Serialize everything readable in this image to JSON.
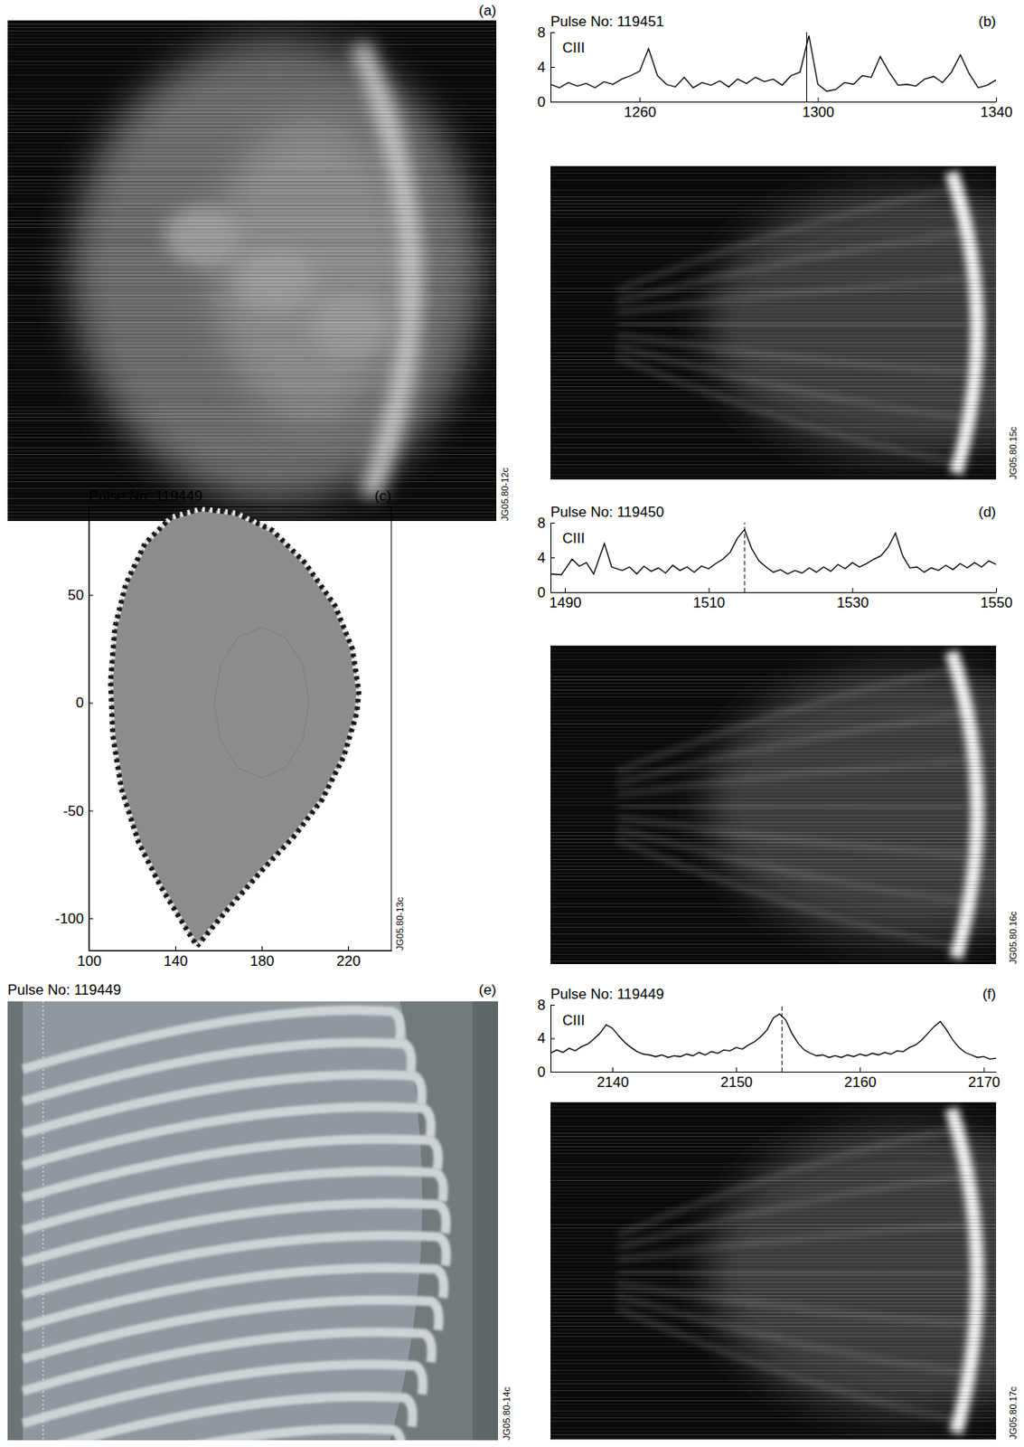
{
  "chart_data": [
    {
      "type": "line",
      "label": "(b)",
      "title": "Pulse No: 119451",
      "code": "JG05.80.15c",
      "annotations": [
        "CIII"
      ],
      "xlim": [
        1240,
        1340
      ],
      "xticks": [
        1260,
        1300,
        1340
      ],
      "ylim": [
        0,
        8
      ],
      "yticks": [
        0,
        4,
        8
      ],
      "vlines": [
        {
          "x": 1297.5,
          "line_style": "solid"
        }
      ],
      "series": [
        {
          "color": "#000000",
          "x": [
            1240,
            1242,
            1244,
            1246,
            1248,
            1250,
            1252,
            1254,
            1256,
            1258,
            1260,
            1262,
            1264,
            1266,
            1268,
            1270,
            1272,
            1274,
            1276,
            1278,
            1280,
            1282,
            1284,
            1286,
            1288,
            1290,
            1292,
            1294,
            1296,
            1298,
            1300,
            1302,
            1304,
            1306,
            1308,
            1310,
            1312,
            1314,
            1316,
            1318,
            1320,
            1322,
            1324,
            1326,
            1328,
            1330,
            1332,
            1334,
            1336,
            1338,
            1340
          ],
          "values": [
            2.0,
            1.6,
            2.2,
            1.8,
            2.1,
            1.6,
            2.3,
            2.0,
            2.6,
            3.0,
            3.5,
            6.1,
            3.0,
            2.0,
            1.7,
            2.8,
            1.6,
            2.2,
            1.9,
            2.4,
            1.7,
            2.6,
            2.1,
            2.8,
            2.3,
            2.6,
            1.9,
            3.0,
            3.4,
            7.6,
            2.0,
            1.2,
            1.4,
            2.2,
            2.0,
            3.0,
            2.8,
            5.2,
            3.4,
            1.9,
            2.0,
            1.8,
            2.6,
            2.9,
            2.2,
            3.4,
            5.4,
            3.2,
            1.6,
            1.9,
            2.5
          ]
        }
      ]
    },
    {
      "type": "line",
      "label": "(c)",
      "title": "Pulse No: 119449",
      "code": "JG05.80-13c",
      "xlim": [
        100,
        240
      ],
      "xticks": [
        100,
        140,
        180,
        220
      ],
      "ylim": [
        -115,
        91
      ],
      "yticks": [
        50,
        0,
        -50,
        -100
      ],
      "series": [
        {
          "color": "#8c8c8c",
          "x": [
            150,
            165,
            180,
            195,
            208,
            218,
            224,
            225,
            222,
            214,
            200,
            185,
            168,
            152,
            138,
            126,
            117,
            112,
            110,
            111,
            115,
            123,
            133,
            142,
            150
          ],
          "values": [
            -113,
            -95,
            -78,
            -62,
            -45,
            -25,
            -5,
            5,
            25,
            45,
            65,
            80,
            88,
            90,
            86,
            74,
            55,
            35,
            10,
            -15,
            -40,
            -65,
            -85,
            -100,
            -113
          ]
        },
        {
          "color": "#777777",
          "x": [
            202,
            199,
            191,
            180,
            169,
            161,
            158,
            161,
            169,
            180,
            191,
            199,
            202
          ],
          "values": [
            0,
            17.5,
            30.3,
            35,
            30.3,
            17.5,
            0,
            -17.5,
            -30.3,
            -35,
            -30.3,
            -17.5,
            0
          ]
        }
      ]
    },
    {
      "type": "line",
      "label": "(d)",
      "title": "Pulse No: 119450",
      "code": "JG05.80.16c",
      "annotations": [
        "CIII"
      ],
      "xlim": [
        1488,
        1550
      ],
      "xticks": [
        1490,
        1510,
        1530,
        1550
      ],
      "ylim": [
        0,
        8
      ],
      "yticks": [
        0,
        4,
        8
      ],
      "vlines": [
        {
          "x": 1515,
          "line_style": "dashed"
        }
      ],
      "series": [
        {
          "color": "#000000",
          "x": [
            1488,
            1489.5,
            1491,
            1492,
            1493,
            1494,
            1495.5,
            1496.5,
            1498,
            1499,
            1500,
            1501,
            1502,
            1503,
            1504,
            1505,
            1506,
            1507,
            1508,
            1509,
            1510,
            1511,
            1512,
            1513,
            1514,
            1515,
            1516,
            1517,
            1518,
            1519,
            1520,
            1521,
            1522,
            1523,
            1524,
            1525,
            1526,
            1527,
            1528,
            1529,
            1530,
            1531,
            1532,
            1533,
            1534,
            1535,
            1536,
            1537,
            1538,
            1539,
            1540,
            1541,
            1542,
            1543,
            1544,
            1545,
            1546,
            1547,
            1548,
            1549,
            1550
          ],
          "values": [
            2.1,
            2.0,
            3.8,
            3.0,
            3.4,
            2.1,
            5.6,
            2.9,
            2.5,
            2.9,
            2.1,
            3.0,
            2.4,
            2.8,
            2.2,
            3.1,
            2.5,
            2.9,
            2.3,
            3.0,
            2.7,
            3.3,
            3.8,
            4.6,
            6.2,
            7.2,
            5.0,
            3.6,
            2.9,
            2.3,
            2.6,
            2.1,
            2.5,
            2.2,
            2.8,
            2.3,
            2.9,
            2.4,
            3.2,
            2.7,
            3.4,
            2.9,
            3.3,
            3.8,
            4.2,
            5.2,
            6.8,
            4.2,
            2.8,
            2.9,
            2.3,
            2.8,
            2.5,
            3.1,
            2.6,
            3.3,
            2.8,
            3.4,
            2.9,
            3.6,
            3.2
          ]
        }
      ]
    },
    {
      "type": "line",
      "label": "(f)",
      "title": "Pulse No: 119449",
      "code": "JG05.80.17c",
      "annotations": [
        "CIII"
      ],
      "xlim": [
        2135,
        2171
      ],
      "xticks": [
        2140,
        2150,
        2160,
        2170
      ],
      "ylim": [
        0,
        8
      ],
      "yticks": [
        0,
        4,
        8
      ],
      "vlines": [
        {
          "x": 2153.7,
          "line_style": "dashed"
        }
      ],
      "series": [
        {
          "color": "#000000",
          "x": [
            2135,
            2135.5,
            2136,
            2136.5,
            2137,
            2137.5,
            2138,
            2138.5,
            2139,
            2139.5,
            2140,
            2140.5,
            2141,
            2141.5,
            2142,
            2142.5,
            2143,
            2143.5,
            2144,
            2144.5,
            2145,
            2145.5,
            2146,
            2146.5,
            2147,
            2147.5,
            2148,
            2148.5,
            2149,
            2149.5,
            2150,
            2150.5,
            2151,
            2151.5,
            2152,
            2152.5,
            2153,
            2153.5,
            2154,
            2154.5,
            2155,
            2155.5,
            2156,
            2156.5,
            2157,
            2157.5,
            2158,
            2158.5,
            2159,
            2159.5,
            2160,
            2160.5,
            2161,
            2161.5,
            2162,
            2162.5,
            2163,
            2163.5,
            2164,
            2164.5,
            2165,
            2165.5,
            2166,
            2166.5,
            2167,
            2167.5,
            2168,
            2168.5,
            2169,
            2169.5,
            2170,
            2170.5,
            2171
          ],
          "values": [
            2.2,
            2.6,
            2.3,
            2.8,
            2.5,
            3.0,
            3.3,
            3.9,
            4.6,
            5.6,
            5.2,
            4.3,
            3.5,
            2.9,
            2.4,
            2.1,
            2.0,
            1.8,
            2.0,
            1.7,
            1.9,
            1.8,
            2.1,
            1.9,
            2.3,
            2.0,
            2.4,
            2.2,
            2.6,
            2.5,
            2.9,
            2.7,
            3.2,
            3.6,
            4.2,
            5.0,
            6.4,
            6.9,
            6.2,
            4.6,
            3.4,
            2.6,
            2.2,
            1.9,
            2.0,
            1.7,
            1.9,
            1.7,
            2.0,
            1.8,
            2.1,
            1.9,
            2.2,
            2.0,
            2.3,
            2.1,
            2.5,
            2.4,
            2.9,
            3.2,
            3.8,
            4.6,
            5.4,
            6.0,
            5.0,
            3.8,
            2.9,
            2.3,
            2.0,
            1.7,
            1.8,
            1.5,
            1.6
          ]
        }
      ]
    }
  ],
  "images": [
    {
      "label": "(a)",
      "code": "JG05.80-12c"
    },
    {
      "label": "(e)",
      "title": "Pulse No: 119449",
      "code": "JG05.80-14c"
    }
  ]
}
